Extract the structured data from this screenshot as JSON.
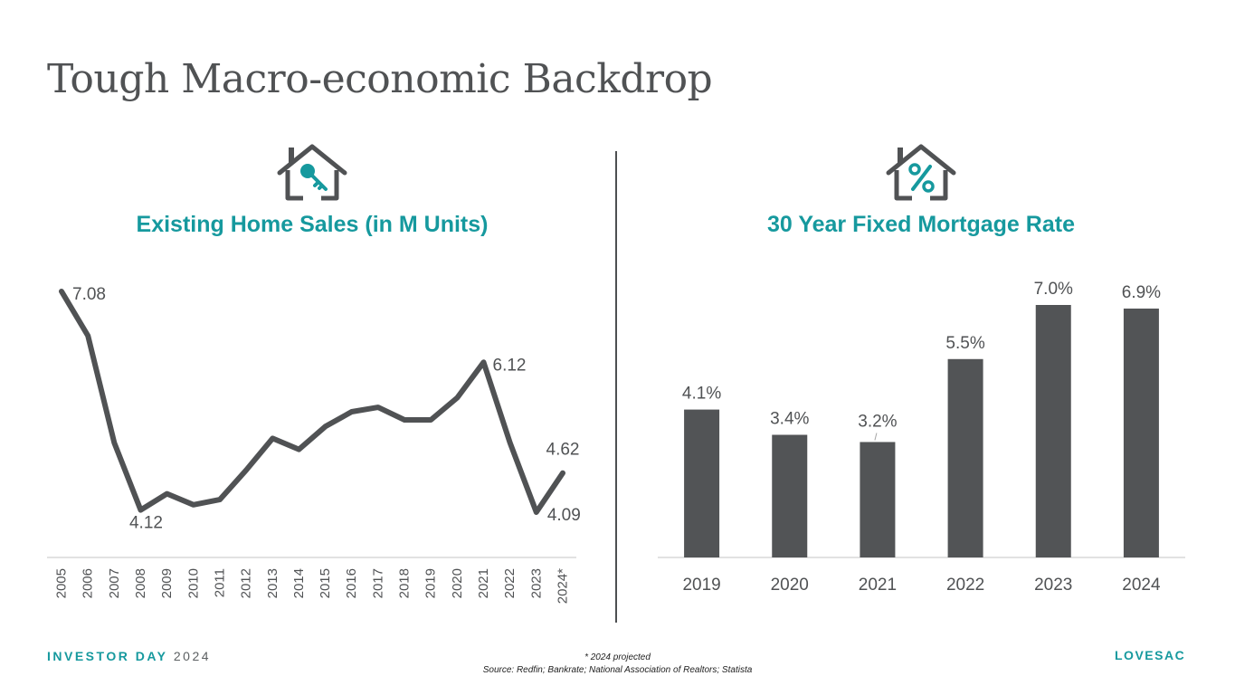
{
  "page": {
    "title": "Tough Macro-economic Backdrop",
    "footer_brand": "INVESTOR DAY",
    "footer_year": "2024",
    "footnote_line1": "* 2024 projected",
    "footnote_line2": "Source: Redfin; Bankrate; National Association of Realtors; Statista",
    "logo": "LOVESAC"
  },
  "colors": {
    "accent": "#16999e",
    "dark": "#505254",
    "bar": "#525456"
  },
  "icons": {
    "left": "house-key-icon",
    "right": "house-percent-icon"
  },
  "chart_data": [
    {
      "type": "line",
      "title": "Existing Home Sales (in M Units)",
      "categories": [
        "2005",
        "2006",
        "2007",
        "2008",
        "2009",
        "2010",
        "2011",
        "2012",
        "2013",
        "2014",
        "2015",
        "2016",
        "2017",
        "2018",
        "2019",
        "2020",
        "2021",
        "2022",
        "2023",
        "2024*"
      ],
      "values": [
        7.08,
        6.48,
        5.03,
        4.12,
        4.34,
        4.19,
        4.26,
        4.66,
        5.09,
        4.94,
        5.25,
        5.45,
        5.51,
        5.34,
        5.34,
        5.64,
        6.12,
        5.03,
        4.09,
        4.62
      ],
      "labels": [
        {
          "index": 0,
          "text": "7.08"
        },
        {
          "index": 3,
          "text": "4.12"
        },
        {
          "index": 16,
          "text": "6.12"
        },
        {
          "index": 18,
          "text": "4.09"
        },
        {
          "index": 19,
          "text": "4.62"
        }
      ],
      "ylim": [
        3.5,
        7.5
      ],
      "xlabel": "",
      "ylabel": "",
      "grid": false,
      "legend": "none"
    },
    {
      "type": "bar",
      "title": "30 Year Fixed Mortgage Rate",
      "categories": [
        "2019",
        "2020",
        "2021",
        "2022",
        "2023",
        "2024"
      ],
      "values": [
        4.1,
        3.4,
        3.2,
        5.5,
        7.0,
        6.9
      ],
      "labels": [
        "4.1%",
        "3.4%",
        "3.2%",
        "5.5%",
        "7.0%",
        "6.9%"
      ],
      "ylim": [
        0,
        7.5
      ],
      "xlabel": "",
      "ylabel": "",
      "grid": false,
      "legend": "none"
    }
  ]
}
